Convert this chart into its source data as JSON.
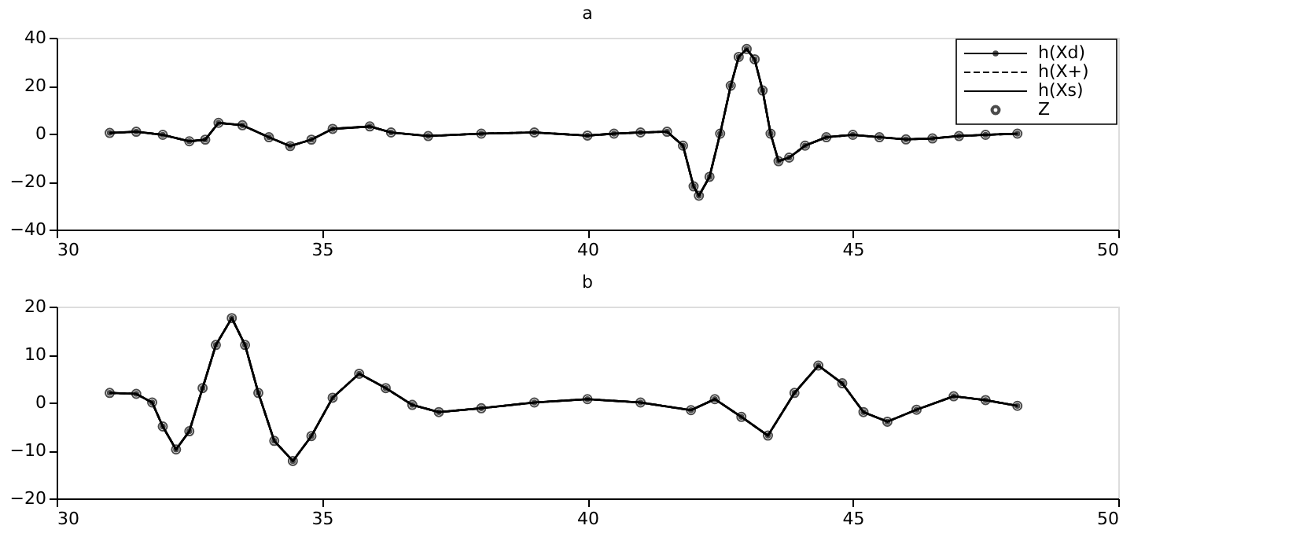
{
  "chart_data": [
    {
      "type": "line",
      "title": "a",
      "legend": "top right",
      "xlim": [
        30,
        50
      ],
      "xticks": [
        30,
        35,
        40,
        45,
        50
      ],
      "ylim": [
        -40,
        40
      ],
      "yticks": [
        -40,
        -20,
        0,
        20,
        40
      ],
      "x": [
        31.0,
        31.5,
        32.0,
        32.5,
        32.8,
        33.05,
        33.5,
        34.0,
        34.4,
        34.8,
        35.2,
        35.9,
        36.3,
        37.0,
        38.0,
        39.0,
        40.0,
        40.5,
        41.0,
        41.5,
        41.8,
        42.0,
        42.1,
        42.3,
        42.5,
        42.7,
        42.85,
        43.0,
        43.15,
        43.3,
        43.45,
        43.6,
        43.8,
        44.1,
        44.5,
        45.0,
        45.5,
        46.0,
        46.5,
        47.0,
        47.5,
        48.1
      ],
      "series": [
        {
          "name": "h(Xd)",
          "color": "#000000",
          "type": "line",
          "line_style": "solid",
          "marker": "circle",
          "values": [
            0.3,
            0.8,
            -0.5,
            -3.2,
            -2.5,
            4.5,
            3.5,
            -1.5,
            -5.2,
            -2.5,
            2,
            3,
            0.5,
            -1,
            0,
            0.5,
            -0.8,
            0,
            0.5,
            0.8,
            -5,
            -22,
            -25.9,
            -18,
            0,
            20,
            32,
            35.3,
            31,
            18,
            0,
            -11.5,
            -10,
            -5,
            -1.5,
            -0.5,
            -1.5,
            -2.4,
            -2,
            -1,
            -0.5,
            0
          ]
        },
        {
          "name": "h(X+)",
          "color": "#000000",
          "type": "line",
          "line_style": "dashed",
          "values": [
            0.3,
            0.8,
            -0.5,
            -3.2,
            -2.5,
            4.5,
            3.5,
            -1.5,
            -5.2,
            -2.5,
            2,
            3,
            0.5,
            -1,
            0,
            0.5,
            -0.8,
            0,
            0.5,
            0.8,
            -5,
            -22,
            -25.9,
            -18,
            0,
            20,
            32,
            35.3,
            31,
            18,
            0,
            -11.5,
            -10,
            -5,
            -1.5,
            -0.5,
            -1.5,
            -2.4,
            -2,
            -1,
            -0.5,
            0
          ]
        },
        {
          "name": "h(Xs)",
          "color": "#000000",
          "type": "line",
          "line_style": "solid",
          "values": [
            0.3,
            0.8,
            -0.5,
            -3.2,
            -2.5,
            4.5,
            3.5,
            -1.5,
            -5.2,
            -2.5,
            2,
            3,
            0.5,
            -1,
            0,
            0.5,
            -0.8,
            0,
            0.5,
            0.8,
            -5,
            -22,
            -25.9,
            -18,
            0,
            20,
            32,
            35.3,
            31,
            18,
            0,
            -11.5,
            -10,
            -5,
            -1.5,
            -0.5,
            -1.5,
            -2.4,
            -2,
            -1,
            -0.5,
            0
          ]
        },
        {
          "name": "Z",
          "color": "#000000",
          "type": "scatter",
          "marker": "circle",
          "values": [
            0.3,
            0.8,
            -0.5,
            -3.2,
            -2.5,
            4.5,
            3.5,
            -1.5,
            -5.2,
            -2.5,
            2,
            3,
            0.5,
            -1,
            0,
            0.5,
            -0.8,
            0,
            0.5,
            0.8,
            -5,
            -22,
            -25.9,
            -18,
            0,
            20,
            32,
            35.3,
            31,
            18,
            0,
            -11.5,
            -10,
            -5,
            -1.5,
            -0.5,
            -1.5,
            -2.4,
            -2,
            -1,
            -0.5,
            0
          ]
        }
      ]
    },
    {
      "type": "line",
      "title": "b",
      "xlim": [
        30,
        50
      ],
      "xticks": [
        30,
        35,
        40,
        45,
        50
      ],
      "ylim": [
        -20,
        20
      ],
      "yticks": [
        -20,
        -10,
        0,
        10,
        20
      ],
      "x": [
        31.0,
        31.5,
        31.8,
        32.0,
        32.25,
        32.5,
        32.75,
        33.0,
        33.3,
        33.55,
        33.8,
        34.1,
        34.45,
        34.8,
        35.2,
        35.7,
        36.2,
        36.7,
        37.2,
        38.0,
        39.0,
        40.0,
        41.0,
        41.95,
        42.4,
        42.9,
        43.4,
        43.9,
        44.35,
        44.8,
        45.2,
        45.65,
        46.2,
        46.9,
        47.5,
        48.1
      ],
      "series": [
        {
          "color": "#000000",
          "type": "line",
          "line_style": "solid",
          "marker": "circle",
          "values": [
            2,
            1.8,
            0,
            -5,
            -9.8,
            -6,
            3,
            12,
            17.6,
            12,
            2,
            -8,
            -12.2,
            -7,
            1,
            6,
            3,
            -0.5,
            -2,
            -1.2,
            0,
            0.7,
            0,
            -1.6,
            0.7,
            -3,
            -6.9,
            2,
            7.7,
            4,
            -2,
            -4,
            -1.5,
            1.3,
            0.5,
            -0.7
          ]
        },
        {
          "color": "#000000",
          "type": "line",
          "line_style": "dashed",
          "values": [
            2,
            1.8,
            0,
            -5,
            -9.8,
            -6,
            3,
            12,
            17.6,
            12,
            2,
            -8,
            -12.2,
            -7,
            1,
            6,
            3,
            -0.5,
            -2,
            -1.2,
            0,
            0.7,
            0,
            -1.6,
            0.7,
            -3,
            -6.9,
            2,
            7.7,
            4,
            -2,
            -4,
            -1.5,
            1.3,
            0.5,
            -0.7
          ]
        },
        {
          "color": "#000000",
          "type": "line",
          "line_style": "solid",
          "values": [
            2,
            1.8,
            0,
            -5,
            -9.8,
            -6,
            3,
            12,
            17.6,
            12,
            2,
            -8,
            -12.2,
            -7,
            1,
            6,
            3,
            -0.5,
            -2,
            -1.2,
            0,
            0.7,
            0,
            -1.6,
            0.7,
            -3,
            -6.9,
            2,
            7.7,
            4,
            -2,
            -4,
            -1.5,
            1.3,
            0.5,
            -0.7
          ]
        },
        {
          "color": "#000000",
          "type": "scatter",
          "marker": "circle",
          "values": [
            2,
            1.8,
            0,
            -5,
            -9.8,
            -6,
            3,
            12,
            17.6,
            12,
            2,
            -8,
            -12.2,
            -7,
            1,
            6,
            3,
            -0.5,
            -2,
            -1.2,
            0,
            0.7,
            0,
            -1.6,
            0.7,
            -3,
            -6.9,
            2,
            7.7,
            4,
            -2,
            -4,
            -1.5,
            1.3,
            0.5,
            -0.7
          ]
        }
      ]
    }
  ]
}
